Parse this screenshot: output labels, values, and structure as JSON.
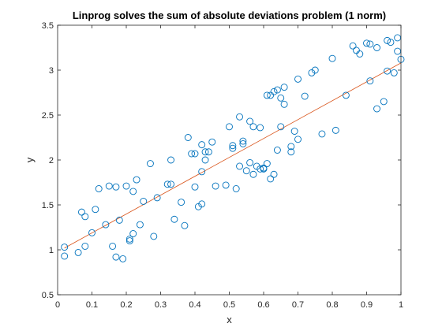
{
  "chart_data": {
    "type": "scatter",
    "title": "Linprog solves the sum of absolute deviations problem (1 norm)",
    "xlabel": "x",
    "ylabel": "y",
    "xlim": [
      0,
      1
    ],
    "ylim": [
      0.5,
      3.5
    ],
    "xticks": [
      "0",
      "0.1",
      "0.2",
      "0.3",
      "0.4",
      "0.5",
      "0.6",
      "0.7",
      "0.8",
      "0.9",
      "1"
    ],
    "yticks": [
      "0.5",
      "1",
      "1.5",
      "2",
      "2.5",
      "3",
      "3.5"
    ],
    "grid": false,
    "legend": "none",
    "colors": {
      "points": "#0072bd",
      "fit_line": "#d95319",
      "axes": "#262626"
    },
    "series": [
      {
        "type": "scatter",
        "marker": "circle",
        "x": [
          0.02,
          0.02,
          0.06,
          0.07,
          0.08,
          0.08,
          0.1,
          0.11,
          0.12,
          0.14,
          0.15,
          0.16,
          0.17,
          0.17,
          0.18,
          0.19,
          0.2,
          0.21,
          0.21,
          0.22,
          0.22,
          0.23,
          0.24,
          0.25,
          0.27,
          0.28,
          0.29,
          0.32,
          0.33,
          0.33,
          0.34,
          0.36,
          0.37,
          0.38,
          0.39,
          0.4,
          0.4,
          0.41,
          0.42,
          0.42,
          0.42,
          0.43,
          0.43,
          0.44,
          0.45,
          0.46,
          0.49,
          0.5,
          0.51,
          0.51,
          0.52,
          0.53,
          0.53,
          0.54,
          0.54,
          0.55,
          0.56,
          0.56,
          0.57,
          0.57,
          0.58,
          0.59,
          0.59,
          0.6,
          0.6,
          0.61,
          0.61,
          0.62,
          0.62,
          0.63,
          0.63,
          0.64,
          0.64,
          0.65,
          0.65,
          0.66,
          0.66,
          0.68,
          0.68,
          0.69,
          0.7,
          0.7,
          0.72,
          0.74,
          0.75,
          0.77,
          0.8,
          0.81,
          0.84,
          0.86,
          0.87,
          0.88,
          0.9,
          0.91,
          0.91,
          0.93,
          0.93,
          0.95,
          0.96,
          0.96,
          0.97,
          0.98,
          0.99,
          0.99,
          1.0
        ],
        "y": [
          0.93,
          1.03,
          0.97,
          1.42,
          1.37,
          1.04,
          1.19,
          1.45,
          1.68,
          1.28,
          1.71,
          1.04,
          0.92,
          1.7,
          1.33,
          0.9,
          1.71,
          1.1,
          1.12,
          1.65,
          1.18,
          1.78,
          1.28,
          1.54,
          1.96,
          1.15,
          1.58,
          1.73,
          1.73,
          2.0,
          1.34,
          1.53,
          1.27,
          2.25,
          2.07,
          2.07,
          1.7,
          1.48,
          1.51,
          1.87,
          2.17,
          2.0,
          2.09,
          2.09,
          2.2,
          1.71,
          1.72,
          2.37,
          2.13,
          2.16,
          1.68,
          2.48,
          1.93,
          2.18,
          2.21,
          1.88,
          2.43,
          1.97,
          2.37,
          1.84,
          1.93,
          2.36,
          1.9,
          1.9,
          1.91,
          1.96,
          2.72,
          2.72,
          1.79,
          1.84,
          2.76,
          2.78,
          2.11,
          2.69,
          2.37,
          2.81,
          2.62,
          2.09,
          2.15,
          2.32,
          2.23,
          2.9,
          2.71,
          2.97,
          3.0,
          2.29,
          3.13,
          2.33,
          2.72,
          3.27,
          3.22,
          3.18,
          3.3,
          2.88,
          3.29,
          3.25,
          2.57,
          2.65,
          2.99,
          3.33,
          3.31,
          2.97,
          3.36,
          3.21,
          3.12
        ],
        "name": ""
      },
      {
        "type": "line",
        "x": [
          0.02,
          1.0
        ],
        "y": [
          1.02,
          3.08
        ],
        "name": ""
      }
    ]
  }
}
